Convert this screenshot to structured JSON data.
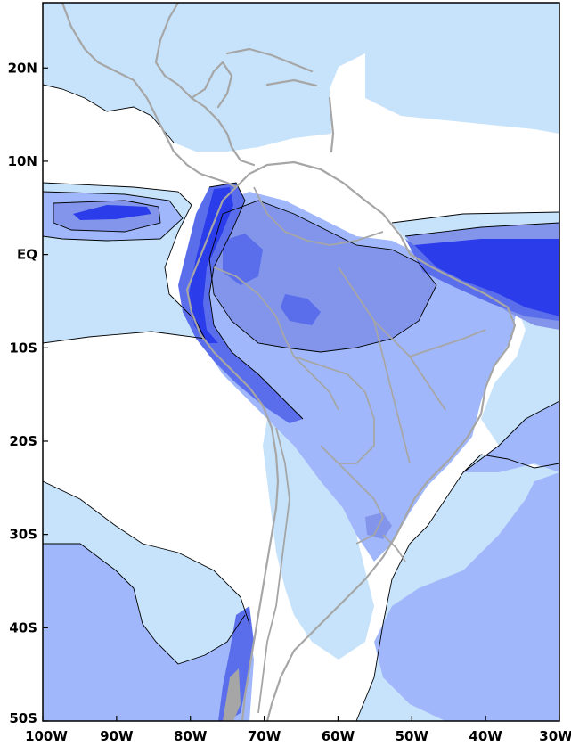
{
  "map": {
    "projection": "lat-lon",
    "lon_range": [
      -100,
      -30
    ],
    "lat_range": [
      -50,
      27
    ],
    "x_ticks": [
      {
        "lon": -100,
        "label": "100W"
      },
      {
        "lon": -90,
        "label": "90W"
      },
      {
        "lon": -80,
        "label": "80W"
      },
      {
        "lon": -70,
        "label": "70W"
      },
      {
        "lon": -60,
        "label": "60W"
      },
      {
        "lon": -50,
        "label": "50W"
      },
      {
        "lon": -40,
        "label": "40W"
      },
      {
        "lon": -30,
        "label": "30W"
      }
    ],
    "y_ticks": [
      {
        "lat": 20,
        "label": "20N"
      },
      {
        "lat": 10,
        "label": "10N"
      },
      {
        "lat": 0,
        "label": "EQ"
      },
      {
        "lat": -10,
        "label": "10S"
      },
      {
        "lat": -20,
        "label": "20S"
      },
      {
        "lat": -30,
        "label": "30S"
      },
      {
        "lat": -40,
        "label": "40S"
      },
      {
        "lat": -50,
        "label": "50S"
      }
    ],
    "colors": {
      "level_0": "#ffffff",
      "level_1": "#c6e3fb",
      "level_2": "#a0b8fb",
      "level_3": "#8295ea",
      "level_4": "#5a6eec",
      "level_5": "#2b3cea",
      "coastline": "#a6a6a6",
      "contour_line": "#000000",
      "land_mask": "#a6a6a6"
    }
  }
}
